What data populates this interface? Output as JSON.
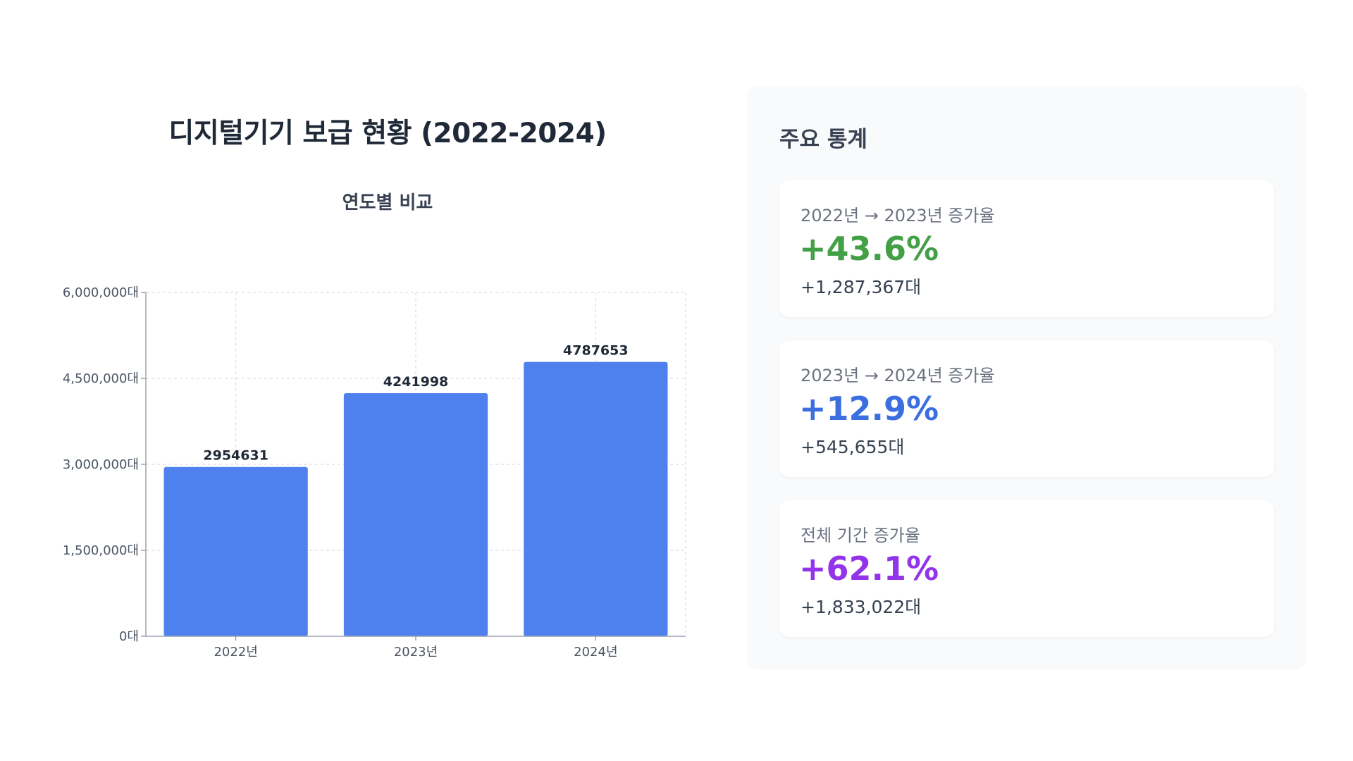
{
  "main_title": "디지털기기 보급 현황 (2022-2024)",
  "chart_data": {
    "type": "bar",
    "title": "연도별 비교",
    "categories": [
      "2022년",
      "2023년",
      "2024년"
    ],
    "values": [
      2954631,
      4241998,
      4787653
    ],
    "value_labels": [
      "2954631",
      "4241998",
      "4787653"
    ],
    "ylim": [
      0,
      6000000
    ],
    "y_ticks": [
      0,
      1500000,
      3000000,
      4500000,
      6000000
    ],
    "y_tick_labels": [
      "0대",
      "1,500,000대",
      "3,000,000대",
      "4,500,000대",
      "6,000,000대"
    ],
    "grid": true,
    "bar_color": "#4f81ee"
  },
  "stats": {
    "title": "주요 통계",
    "cards": [
      {
        "label": "2022년 → 2023년 증가율",
        "value": "+43.6%",
        "delta": "+1,287,367대",
        "color": "#43a047"
      },
      {
        "label": "2023년 → 2024년 증가율",
        "value": "+12.9%",
        "delta": "+545,655대",
        "color": "#3b6fe0"
      },
      {
        "label": "전체 기간 증가율",
        "value": "+62.1%",
        "delta": "+1,833,022대",
        "color": "#9333ea"
      }
    ]
  }
}
